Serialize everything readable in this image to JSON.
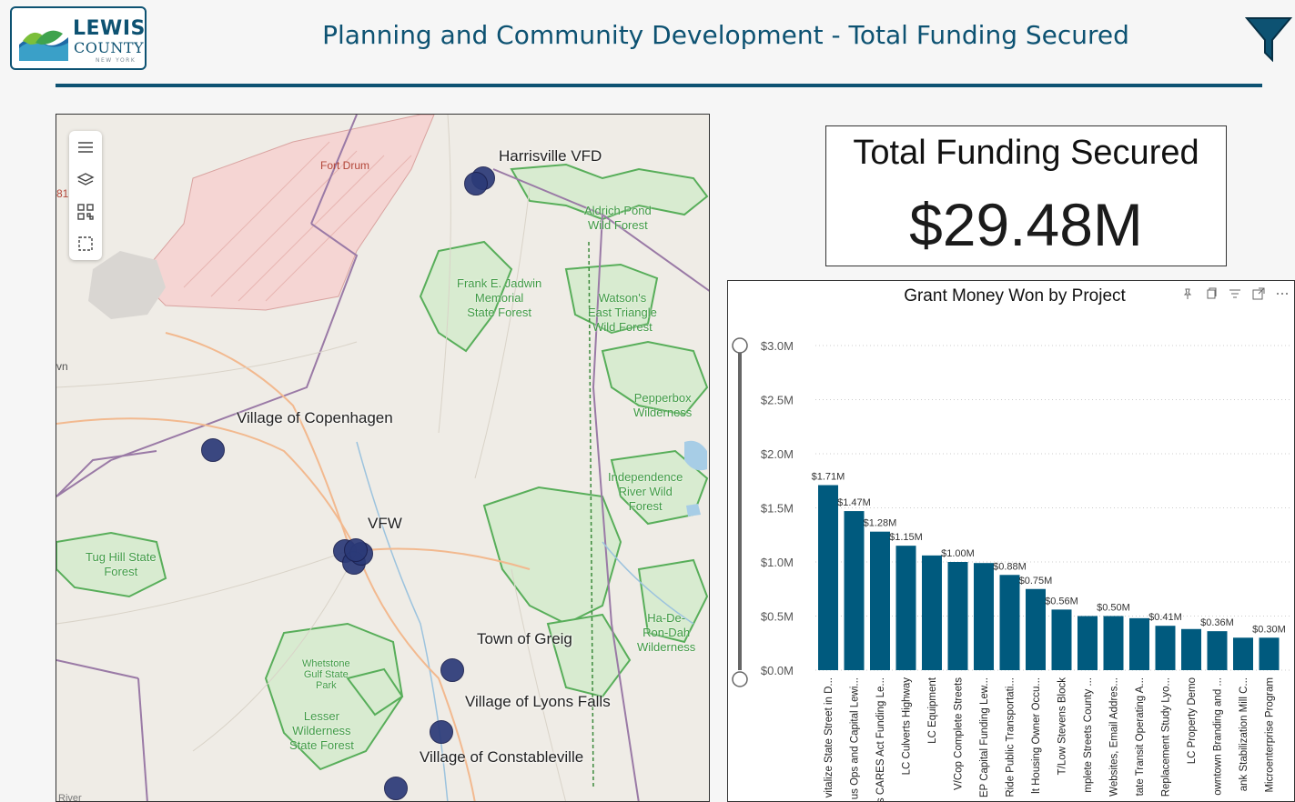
{
  "header": {
    "logo_text": "LEWIS",
    "logo_sub": "COUNTY",
    "logo_state": "NEW YORK",
    "title": "Planning and Community Development - Total Funding Secured"
  },
  "map": {
    "labels": {
      "harrisville": "Harrisville VFD",
      "copenhagen": "Village of Copenhagen",
      "vfw": "VFW",
      "greig": "Town of Greig",
      "lyons_falls": "Village of Lyons Falls",
      "constableville": "Village of Constableville",
      "fort_drum": "Fort Drum",
      "aldrich": "Aldrich Pond\nWild Forest",
      "jadwin": "Frank E. Jadwin\nMemorial\nState Forest",
      "watsons": "Watson's\nEast Triangle\nWild Forest",
      "pepperbox": "Pepperbox\nWilderness",
      "independence": "Independence\nRiver Wild\nForest",
      "tug_hill": "Tug Hill State\nForest",
      "hadero": "Ha-De-\nRon-Dah\nWilderness",
      "whetstone": "Whetstone\nGulf State\nPark",
      "lesser": "Lesser\nWilderness\nState Forest",
      "river": "River",
      "edge_left": "vn",
      "route": "81"
    }
  },
  "kpi": {
    "title": "Total Funding Secured",
    "value": "$29.48M"
  },
  "chart_data": {
    "type": "bar",
    "title": "Grant Money Won by Project",
    "xlabel": "",
    "ylabel": "",
    "ylim": [
      0,
      3.0
    ],
    "y_ticks": [
      "$0.0M",
      "$0.5M",
      "$1.0M",
      "$1.5M",
      "$2.0M",
      "$2.5M",
      "$3.0M"
    ],
    "bar_color": "#005a7e",
    "categories": [
      "vitalize State Street in D...",
      "us Ops and Capital Lewi...",
      "s CARES Act Funding Le...",
      "LC Culverts Highway",
      "LC Equipment",
      "V/Cop Complete Streets",
      "EP Capital Funding Lew...",
      "Ride Public Transportati...",
      "lt Housing Owner Occu...",
      "T/Low Stevens Block",
      "mplete Streets County ...",
      "Websites, Email Addres...",
      "tate Transit Operating A...",
      "Replacement Study Lyo...",
      "LC Property Demo",
      "owntown Branding and ...",
      "ank Stabilization Mill C...",
      "Microenterprise Program"
    ],
    "values": [
      1.71,
      1.47,
      1.28,
      1.15,
      1.06,
      1.0,
      0.99,
      0.88,
      0.75,
      0.56,
      0.5,
      0.5,
      0.48,
      0.41,
      0.38,
      0.36,
      0.3,
      0.3
    ],
    "data_labels": [
      "$1.71M",
      "$1.47M",
      "$1.28M",
      "$1.15M",
      "",
      "$1.00M",
      "",
      "$0.88M",
      "$0.75M",
      "$0.56M",
      "",
      "$0.50M",
      "",
      "$0.41M",
      "",
      "$0.36M",
      "",
      "$0.30M"
    ]
  }
}
